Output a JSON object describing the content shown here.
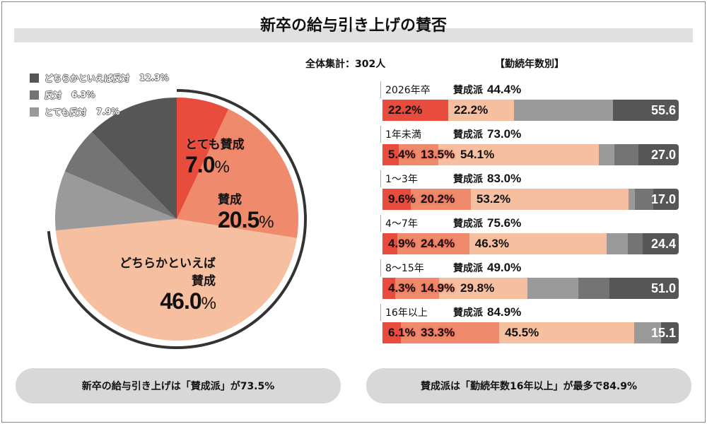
{
  "title": "新卒の給与引き上げの賛否",
  "total_label": "全体集計：302人",
  "by_years_label": "【勤続年数別】",
  "colors": {
    "very_favor": "#e84c3d",
    "favor": "#ef8a6c",
    "somewhat_favor": "#f5bfa0",
    "very_oppose": "#9a9a9a",
    "oppose": "#747474",
    "somewhat_oppose": "#565656"
  },
  "chart_data": [
    {
      "type": "pie",
      "start": "top",
      "direction": "clockwise",
      "slices": [
        {
          "label": "とても賛成",
          "value": 7.0,
          "display": "7.0%",
          "color": "#e84c3d"
        },
        {
          "label": "賛成",
          "value": 20.5,
          "display": "20.5%",
          "color": "#ef8a6c"
        },
        {
          "label": "どちらかといえば賛成",
          "value": 46.0,
          "display": "46.0%",
          "color": "#f5bfa0"
        },
        {
          "label": "とても反対",
          "value": 7.9,
          "display": "7.9%",
          "color": "#9a9a9a"
        },
        {
          "label": "反対",
          "value": 6.3,
          "display": "6.3%",
          "color": "#747474"
        },
        {
          "label": "どちらかといえば反対",
          "value": 12.3,
          "display": "12.3%",
          "color": "#565656"
        }
      ],
      "legend": [
        {
          "label": "どちらかといえば反対",
          "value": "12.3%",
          "color": "#565656"
        },
        {
          "label": "反対",
          "value": "6.3%",
          "color": "#747474"
        },
        {
          "label": "とても反対",
          "value": "7.9%",
          "color": "#9a9a9a"
        }
      ],
      "legend_position": "top-left",
      "highlight_arc": "favor total 73.5%"
    },
    {
      "type": "bar",
      "orientation": "horizontal-stacked-100",
      "favor_label": "賛成派",
      "rows": [
        {
          "group": "2026年卒",
          "favor_total": "44.4%",
          "values": [
            22.2,
            0,
            22.2,
            33.4,
            0,
            22.2
          ],
          "labels": [
            "22.2%",
            "",
            "22.2%"
          ],
          "oppose_total": "55.6"
        },
        {
          "group": "1年未満",
          "favor_total": "73.0%",
          "values": [
            5.4,
            13.5,
            54.1,
            5.4,
            8.1,
            13.5
          ],
          "labels": [
            "5.4%",
            "13.5%",
            "54.1%"
          ],
          "oppose_total": "27.0"
        },
        {
          "group": "1〜3年",
          "favor_total": "83.0%",
          "values": [
            9.6,
            20.2,
            53.2,
            2.1,
            6.4,
            8.5
          ],
          "labels": [
            "9.6%",
            "20.2%",
            "53.2%"
          ],
          "oppose_total": "17.0"
        },
        {
          "group": "4〜7年",
          "favor_total": "75.6%",
          "values": [
            4.9,
            24.4,
            46.3,
            7.3,
            4.9,
            12.2
          ],
          "labels": [
            "4.9%",
            "24.4%",
            "46.3%"
          ],
          "oppose_total": "24.4"
        },
        {
          "group": "8〜15年",
          "favor_total": "49.0%",
          "values": [
            4.3,
            14.9,
            29.8,
            17.0,
            10.6,
            23.4
          ],
          "labels": [
            "4.3%",
            "14.9%",
            "29.8%"
          ],
          "oppose_total": "51.0"
        },
        {
          "group": "16年以上",
          "favor_total": "84.9%",
          "values": [
            6.1,
            33.3,
            45.5,
            9.1,
            0,
            6.0
          ],
          "labels": [
            "6.1%",
            "33.3%",
            "45.5%"
          ],
          "oppose_total": "15.1"
        }
      ]
    }
  ],
  "footer": {
    "left": "新卒の給与引き上げは「賛成派」が73.5%",
    "right": "賛成派は「勤続年数16年以上」が最多で84.9%"
  }
}
